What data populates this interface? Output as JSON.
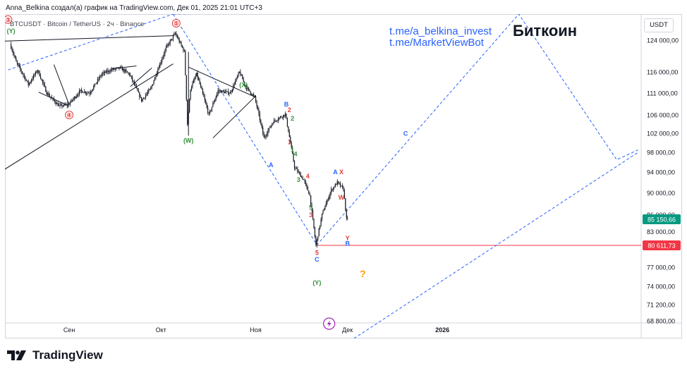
{
  "header": {
    "author_line": "Anna_Belkina создал(а) график на TradingView.com, Дек 01, 2025 21:01 UTC+3",
    "symbol_line": "BTCUSDT · Bitcoin / TetherUS · 2ч · Binance",
    "currency": "USDT"
  },
  "watermarks": {
    "link1": "t.me/a_belkina_invest",
    "link2": "t.me/MarketViewBot",
    "title": "Биткоин"
  },
  "footer": {
    "brand": "TradingView"
  },
  "colors": {
    "candle": "#131722",
    "projection": "#2962ff",
    "support": "#f23645",
    "current_price": "#089981",
    "wave_green": "#388e3c",
    "wave_red": "#e53935",
    "wave_blue": "#2962ff",
    "question": "#ff9800",
    "lightning": "#9c27b0"
  },
  "chart_data": {
    "type": "candlestick",
    "symbol": "BTCUSDT",
    "timeframe": "2ч",
    "y_ticks": [
      124000,
      116000,
      111000,
      106000,
      102000,
      98000,
      94000,
      90000,
      86000,
      83000,
      77000,
      74000,
      71200,
      68800
    ],
    "y_tick_labels": [
      "124 000,00",
      "116 000,00",
      "111 000,00",
      "106 000,00",
      "102 000,00",
      "98 000,00",
      "94 000,00",
      "90 000,00",
      "86 000,00",
      "83 000,00",
      "77 000,00",
      "74 000,00",
      "71 200,00",
      "68 800,00"
    ],
    "ylim": [
      68500,
      131000
    ],
    "x_ticks": [
      "Сен",
      "Окт",
      "Ноя",
      "Дек",
      "2026"
    ],
    "x_tick_dates": [
      "2025-09-01",
      "2025-10-01",
      "2025-11-01",
      "2025-12-01",
      "2026-01-01"
    ],
    "xlim": [
      "2025-08-11",
      "2026-03-07"
    ],
    "price_path": [
      [
        "2025-08-13",
        123000
      ],
      [
        "2025-08-15",
        118500
      ],
      [
        "2025-08-19",
        113000
      ],
      [
        "2025-08-22",
        116500
      ],
      [
        "2025-08-25",
        111000
      ],
      [
        "2025-08-29",
        108000
      ],
      [
        "2025-09-01",
        108300
      ],
      [
        "2025-09-05",
        111500
      ],
      [
        "2025-09-08",
        111000
      ],
      [
        "2025-09-12",
        115500
      ],
      [
        "2025-09-15",
        116500
      ],
      [
        "2025-09-18",
        117000
      ],
      [
        "2025-09-21",
        115500
      ],
      [
        "2025-09-25",
        109300
      ],
      [
        "2025-09-28",
        112000
      ],
      [
        "2025-10-03",
        122000
      ],
      [
        "2025-10-06",
        125800
      ],
      [
        "2025-10-09",
        121000
      ],
      [
        "2025-10-10",
        104000
      ],
      [
        "2025-10-11",
        112000
      ],
      [
        "2025-10-13",
        115500
      ],
      [
        "2025-10-17",
        106000
      ],
      [
        "2025-10-20",
        111500
      ],
      [
        "2025-10-24",
        111000
      ],
      [
        "2025-10-27",
        116000
      ],
      [
        "2025-10-29",
        112500
      ],
      [
        "2025-11-01",
        110000
      ],
      [
        "2025-11-04",
        101000
      ],
      [
        "2025-11-07",
        104500
      ],
      [
        "2025-11-11",
        106200
      ],
      [
        "2025-11-14",
        95000
      ],
      [
        "2025-11-17",
        92500
      ],
      [
        "2025-11-19",
        89500
      ],
      [
        "2025-11-21",
        80600
      ],
      [
        "2025-11-23",
        86000
      ],
      [
        "2025-11-26",
        90500
      ],
      [
        "2025-11-28",
        92000
      ],
      [
        "2025-11-30",
        90700
      ],
      [
        "2025-12-01",
        85150
      ]
    ],
    "current_price": 85150.66,
    "current_price_label": "85 150,66",
    "support_level": 80611.73,
    "support_label": "80 611,73",
    "wave_labels": [
      {
        "text": "③",
        "date": "2025-08-12",
        "price": 129500,
        "color": "red"
      },
      {
        "text": "(Y)",
        "date": "2025-08-13",
        "price": 126500,
        "color": "green"
      },
      {
        "text": "④",
        "date": "2025-09-01",
        "price": 106000,
        "color": "red"
      },
      {
        "text": "⑤",
        "date": "2025-10-06",
        "price": 128500,
        "color": "red"
      },
      {
        "text": "(W)",
        "date": "2025-10-10",
        "price": 100500,
        "color": "green"
      },
      {
        "text": "(X)",
        "date": "2025-10-28",
        "price": 113000,
        "color": "green"
      },
      {
        "text": "A",
        "date": "2025-11-06",
        "price": 95500,
        "color": "blue"
      },
      {
        "text": "B",
        "date": "2025-11-11",
        "price": 108500,
        "color": "blue"
      },
      {
        "text": "2",
        "date": "2025-11-12",
        "price": 107200,
        "color": "red"
      },
      {
        "text": "2",
        "date": "2025-11-13",
        "price": 105300,
        "color": "green"
      },
      {
        "text": "1",
        "date": "2025-11-12",
        "price": 100200,
        "color": "red"
      },
      {
        "text": "1",
        "date": "2025-11-13",
        "price": 98600,
        "color": "green"
      },
      {
        "text": "4",
        "date": "2025-11-14",
        "price": 97700,
        "color": "green"
      },
      {
        "text": "4",
        "date": "2025-11-18",
        "price": 93300,
        "color": "red"
      },
      {
        "text": "3",
        "date": "2025-11-15",
        "price": 92600,
        "color": "green"
      },
      {
        "text": "5",
        "date": "2025-11-19",
        "price": 87300,
        "color": "green"
      },
      {
        "text": "3",
        "date": "2025-11-19",
        "price": 86000,
        "color": "red"
      },
      {
        "text": "5",
        "date": "2025-11-21",
        "price": 79400,
        "color": "red"
      },
      {
        "text": "C",
        "date": "2025-11-21",
        "price": 78300,
        "color": "blue"
      },
      {
        "text": "(Y)",
        "date": "2025-11-21",
        "price": 74600,
        "color": "green"
      },
      {
        "text": "A",
        "date": "2025-11-27",
        "price": 94100,
        "color": "blue"
      },
      {
        "text": "X",
        "date": "2025-11-29",
        "price": 94100,
        "color": "red"
      },
      {
        "text": "W",
        "date": "2025-11-29",
        "price": 89200,
        "color": "red"
      },
      {
        "text": "Y",
        "date": "2025-12-01",
        "price": 81900,
        "color": "red"
      },
      {
        "text": "B",
        "date": "2025-12-01",
        "price": 81000,
        "color": "blue"
      },
      {
        "text": "C",
        "date": "2025-12-20",
        "price": 102000,
        "color": "blue"
      },
      {
        "text": "?",
        "date": "2025-12-06",
        "price": 75800,
        "color": "orange"
      }
    ],
    "trendlines": [
      {
        "style": "solid",
        "color": "black",
        "points": [
          [
            "2025-08-11",
            123800
          ],
          [
            "2025-10-05",
            125200
          ]
        ]
      },
      {
        "style": "solid",
        "color": "black",
        "points": [
          [
            "2025-08-11",
            94600
          ],
          [
            "2025-10-05",
            118000
          ]
        ]
      },
      {
        "style": "solid",
        "color": "black",
        "points": [
          [
            "2025-08-22",
            111200
          ],
          [
            "2025-09-01",
            108000
          ]
        ]
      },
      {
        "style": "solid",
        "color": "black",
        "points": [
          [
            "2025-08-27",
            117800
          ],
          [
            "2025-09-01",
            108300
          ]
        ]
      },
      {
        "style": "solid",
        "color": "black",
        "points": [
          [
            "2025-09-15",
            116800
          ],
          [
            "2025-09-23",
            117500
          ]
        ]
      },
      {
        "style": "solid",
        "color": "black",
        "points": [
          [
            "2025-09-21",
            112500
          ],
          [
            "2025-09-28",
            117000
          ]
        ]
      },
      {
        "style": "solid",
        "color": "black",
        "points": [
          [
            "2025-10-10",
            117200
          ],
          [
            "2025-11-01",
            110000
          ]
        ]
      },
      {
        "style": "solid",
        "color": "black",
        "points": [
          [
            "2025-10-18",
            101000
          ],
          [
            "2025-11-01",
            110300
          ]
        ]
      },
      {
        "style": "solid",
        "color": "black",
        "points": [
          [
            "2025-10-10",
            121000
          ],
          [
            "2025-10-10",
            101500
          ]
        ]
      },
      {
        "style": "dashed",
        "color": "blue",
        "points": [
          [
            "2025-08-12",
            116500
          ],
          [
            "2025-10-05",
            131000
          ]
        ]
      },
      {
        "style": "dashed",
        "color": "blue",
        "points": [
          [
            "2025-10-05",
            131000
          ],
          [
            "2025-11-21",
            80700
          ],
          [
            "2026-01-26",
            131000
          ],
          [
            "2026-02-27",
            96500
          ],
          [
            "2026-03-06",
            98500
          ]
        ]
      },
      {
        "style": "dashed",
        "color": "blue",
        "points": [
          [
            "2025-10-05",
            131000
          ],
          [
            "2025-11-10",
            131500
          ]
        ]
      },
      {
        "style": "dashed",
        "color": "blue",
        "points": [
          [
            "2025-11-21",
            63000
          ],
          [
            "2026-03-06",
            98000
          ]
        ]
      }
    ]
  }
}
